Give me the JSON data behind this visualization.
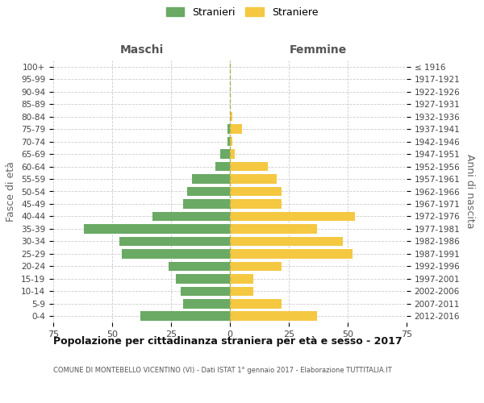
{
  "age_groups": [
    "100+",
    "95-99",
    "90-94",
    "85-89",
    "80-84",
    "75-79",
    "70-74",
    "65-69",
    "60-64",
    "55-59",
    "50-54",
    "45-49",
    "40-44",
    "35-39",
    "30-34",
    "25-29",
    "20-24",
    "15-19",
    "10-14",
    "5-9",
    "0-4"
  ],
  "birth_years": [
    "≤ 1916",
    "1917-1921",
    "1922-1926",
    "1927-1931",
    "1932-1936",
    "1937-1941",
    "1942-1946",
    "1947-1951",
    "1952-1956",
    "1957-1961",
    "1962-1966",
    "1967-1971",
    "1972-1976",
    "1977-1981",
    "1982-1986",
    "1987-1991",
    "1992-1996",
    "1997-2001",
    "2002-2006",
    "2007-2011",
    "2012-2016"
  ],
  "males": [
    0,
    0,
    0,
    0,
    0,
    1,
    1,
    4,
    6,
    16,
    18,
    20,
    33,
    62,
    47,
    46,
    26,
    23,
    21,
    20,
    38
  ],
  "females": [
    0,
    0,
    0,
    0,
    1,
    5,
    1,
    2,
    16,
    20,
    22,
    22,
    53,
    37,
    48,
    52,
    22,
    10,
    10,
    22,
    37
  ],
  "male_color": "#6aaa64",
  "female_color": "#f5c842",
  "grid_color": "#cccccc",
  "background_color": "#ffffff",
  "title": "Popolazione per cittadinanza straniera per età e sesso - 2017",
  "subtitle": "COMUNE DI MONTEBELLO VICENTINO (VI) - Dati ISTAT 1° gennaio 2017 - Elaborazione TUTTITALIA.IT",
  "xlabel_left": "Maschi",
  "xlabel_right": "Femmine",
  "ylabel_left": "Fasce di età",
  "ylabel_right": "Anni di nascita",
  "legend_male": "Stranieri",
  "legend_female": "Straniere",
  "xlim": 75
}
